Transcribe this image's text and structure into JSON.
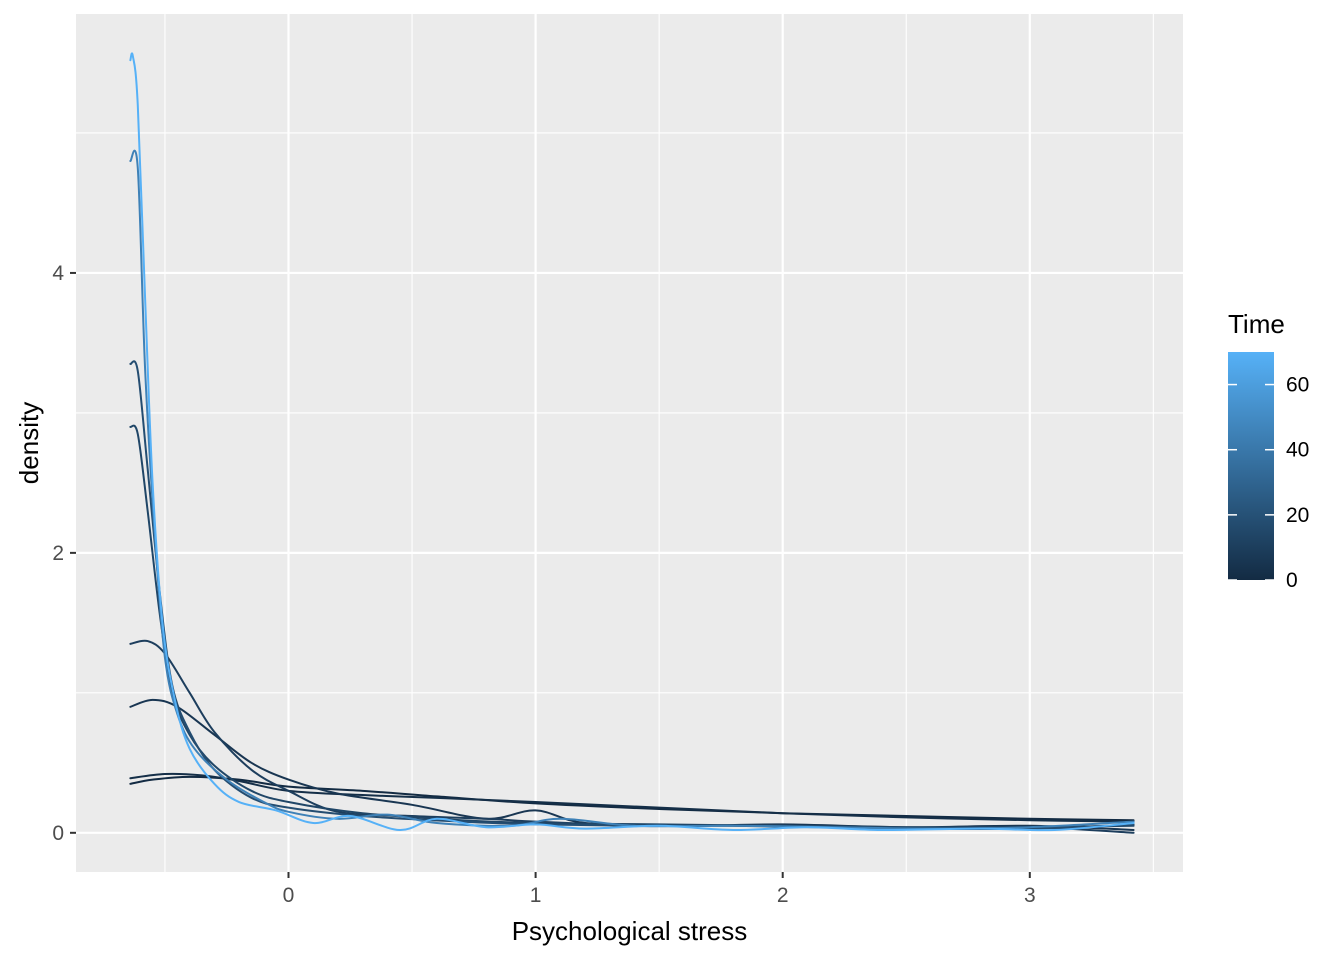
{
  "chart_data": {
    "type": "line",
    "title": "",
    "xlabel": "Psychological stress",
    "ylabel": "density",
    "xlim": [
      -0.86,
      3.62
    ],
    "ylim": [
      -0.28,
      5.85
    ],
    "x_ticks": [
      0,
      1,
      2,
      3
    ],
    "x_tick_labels": [
      "0",
      "1",
      "2",
      "3"
    ],
    "y_ticks": [
      0,
      2,
      4
    ],
    "y_tick_labels": [
      "0",
      "2",
      "4"
    ],
    "grid": true,
    "background": "#EBEBEB",
    "legend": {
      "title": "Time",
      "type": "colorbar",
      "position": "right",
      "range": [
        0,
        70
      ],
      "ticks": [
        0,
        20,
        40,
        60
      ],
      "tick_labels": [
        "0",
        "20",
        "40",
        "60"
      ],
      "color_low": "#132B43",
      "color_high": "#56B1F7"
    },
    "series": [
      {
        "time": 0,
        "points": [
          [
            -0.64,
            0.35
          ],
          [
            -0.55,
            0.38
          ],
          [
            -0.4,
            0.4
          ],
          [
            -0.2,
            0.38
          ],
          [
            0,
            0.33
          ],
          [
            0.3,
            0.3
          ],
          [
            0.6,
            0.26
          ],
          [
            1,
            0.21
          ],
          [
            1.5,
            0.17
          ],
          [
            2,
            0.14
          ],
          [
            2.5,
            0.12
          ],
          [
            3,
            0.1
          ],
          [
            3.42,
            0.09
          ]
        ]
      },
      {
        "time": 2,
        "points": [
          [
            -0.64,
            0.39
          ],
          [
            -0.5,
            0.42
          ],
          [
            -0.35,
            0.41
          ],
          [
            -0.2,
            0.37
          ],
          [
            0,
            0.3
          ],
          [
            0.3,
            0.27
          ],
          [
            0.6,
            0.25
          ],
          [
            1,
            0.22
          ],
          [
            1.5,
            0.18
          ],
          [
            2,
            0.14
          ],
          [
            2.5,
            0.11
          ],
          [
            3,
            0.09
          ],
          [
            3.42,
            0.08
          ]
        ]
      },
      {
        "time": 6,
        "points": [
          [
            -0.64,
            0.9
          ],
          [
            -0.55,
            0.95
          ],
          [
            -0.45,
            0.9
          ],
          [
            -0.3,
            0.7
          ],
          [
            -0.15,
            0.5
          ],
          [
            0,
            0.38
          ],
          [
            0.2,
            0.28
          ],
          [
            0.5,
            0.2
          ],
          [
            0.8,
            0.1
          ],
          [
            1,
            0.16
          ],
          [
            1.2,
            0.07
          ],
          [
            1.6,
            0.05
          ],
          [
            2,
            0.06
          ],
          [
            2.5,
            0.04
          ],
          [
            3,
            0.05
          ],
          [
            3.42,
            0.02
          ]
        ]
      },
      {
        "time": 10,
        "points": [
          [
            -0.64,
            1.35
          ],
          [
            -0.57,
            1.37
          ],
          [
            -0.5,
            1.28
          ],
          [
            -0.4,
            1.0
          ],
          [
            -0.3,
            0.72
          ],
          [
            -0.15,
            0.45
          ],
          [
            0,
            0.3
          ],
          [
            0.2,
            0.15
          ],
          [
            0.5,
            0.12
          ],
          [
            0.8,
            0.1
          ],
          [
            1,
            0.08
          ],
          [
            1.3,
            0.06
          ],
          [
            1.8,
            0.05
          ],
          [
            2.5,
            0.03
          ],
          [
            3,
            0.04
          ],
          [
            3.42,
            0.0
          ]
        ]
      },
      {
        "time": 14,
        "points": [
          [
            -0.64,
            2.9
          ],
          [
            -0.61,
            2.85
          ],
          [
            -0.57,
            2.3
          ],
          [
            -0.52,
            1.55
          ],
          [
            -0.47,
            1.0
          ],
          [
            -0.4,
            0.7
          ],
          [
            -0.3,
            0.48
          ],
          [
            -0.15,
            0.3
          ],
          [
            0,
            0.22
          ],
          [
            0.3,
            0.14
          ],
          [
            0.7,
            0.09
          ],
          [
            1,
            0.07
          ],
          [
            1.5,
            0.06
          ],
          [
            2,
            0.05
          ],
          [
            2.5,
            0.04
          ],
          [
            3,
            0.04
          ],
          [
            3.42,
            0.05
          ]
        ]
      },
      {
        "time": 18,
        "points": [
          [
            -0.64,
            3.35
          ],
          [
            -0.61,
            3.3
          ],
          [
            -0.57,
            2.6
          ],
          [
            -0.52,
            1.7
          ],
          [
            -0.47,
            1.05
          ],
          [
            -0.4,
            0.72
          ],
          [
            -0.3,
            0.45
          ],
          [
            -0.15,
            0.25
          ],
          [
            0,
            0.18
          ],
          [
            0.3,
            0.12
          ],
          [
            0.7,
            0.08
          ],
          [
            1,
            0.06
          ],
          [
            1.5,
            0.05
          ],
          [
            2,
            0.05
          ],
          [
            2.5,
            0.03
          ],
          [
            3,
            0.03
          ],
          [
            3.42,
            0.06
          ]
        ]
      },
      {
        "time": 45,
        "points": [
          [
            -0.64,
            4.8
          ],
          [
            -0.61,
            4.75
          ],
          [
            -0.58,
            3.3
          ],
          [
            -0.54,
            2.1
          ],
          [
            -0.5,
            1.25
          ],
          [
            -0.45,
            0.85
          ],
          [
            -0.38,
            0.6
          ],
          [
            -0.25,
            0.38
          ],
          [
            -0.1,
            0.22
          ],
          [
            0,
            0.15
          ],
          [
            0.2,
            0.1
          ],
          [
            0.4,
            0.13
          ],
          [
            0.6,
            0.07
          ],
          [
            0.9,
            0.05
          ],
          [
            1.1,
            0.1
          ],
          [
            1.4,
            0.05
          ],
          [
            1.8,
            0.05
          ],
          [
            2.2,
            0.04
          ],
          [
            2.6,
            0.03
          ],
          [
            3,
            0.04
          ],
          [
            3.42,
            0.08
          ]
        ]
      },
      {
        "time": 70,
        "points": [
          [
            -0.64,
            5.52
          ],
          [
            -0.63,
            5.55
          ],
          [
            -0.61,
            5.2
          ],
          [
            -0.58,
            3.8
          ],
          [
            -0.55,
            2.5
          ],
          [
            -0.51,
            1.5
          ],
          [
            -0.46,
            0.95
          ],
          [
            -0.4,
            0.6
          ],
          [
            -0.3,
            0.35
          ],
          [
            -0.2,
            0.22
          ],
          [
            -0.05,
            0.16
          ],
          [
            0.1,
            0.07
          ],
          [
            0.25,
            0.12
          ],
          [
            0.45,
            0.02
          ],
          [
            0.6,
            0.1
          ],
          [
            0.8,
            0.04
          ],
          [
            1.0,
            0.06
          ],
          [
            1.2,
            0.03
          ],
          [
            1.5,
            0.05
          ],
          [
            1.8,
            0.02
          ],
          [
            2.1,
            0.04
          ],
          [
            2.4,
            0.02
          ],
          [
            2.8,
            0.03
          ],
          [
            3.1,
            0.02
          ],
          [
            3.42,
            0.07
          ]
        ]
      }
    ]
  }
}
